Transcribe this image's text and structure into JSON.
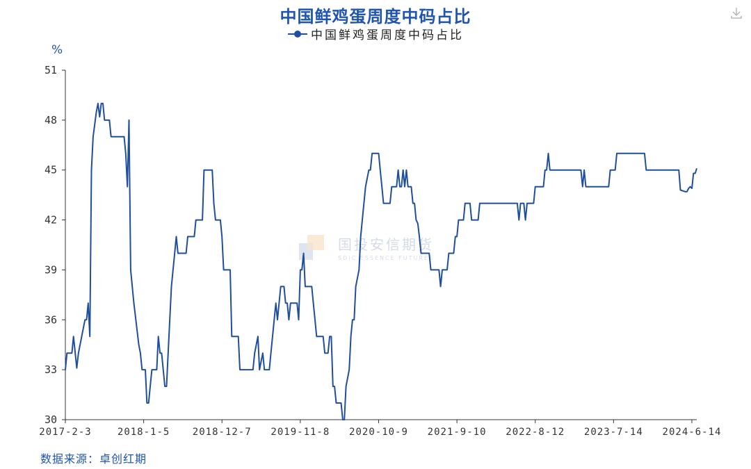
{
  "title": "中国鲜鸡蛋周度中码占比",
  "legend": "中国鲜鸡蛋周度中码占比",
  "unit": "%",
  "source": "数据来源：卓创红期",
  "watermark": {
    "cn": "国投安信期货",
    "en": "SDIC ESSENCE FUTURES"
  },
  "icons": {
    "download": "download-icon"
  },
  "colors": {
    "line": "#1f4e9c",
    "title": "#1f55b0",
    "axis": "#333333"
  },
  "chart_data": {
    "type": "line",
    "title": "中国鲜鸡蛋周度中码占比",
    "ylabel": "%",
    "ylim": [
      30,
      51
    ],
    "yticks": [
      30,
      33,
      36,
      39,
      42,
      45,
      48,
      51
    ],
    "xlim": [
      "2017-02-03",
      "2024-07-05"
    ],
    "xticks": [
      "2017-2-3",
      "2018-1-5",
      "2018-12-7",
      "2019-11-8",
      "2020-10-9",
      "2021-9-10",
      "2022-8-12",
      "2023-7-14",
      "2024-6-14"
    ],
    "grid": false,
    "legend_position": "top",
    "series": [
      {
        "name": "中国鲜鸡蛋周度中码占比",
        "points": [
          [
            "2017-02-03",
            33
          ],
          [
            "2017-02-10",
            34
          ],
          [
            "2017-03-03",
            34
          ],
          [
            "2017-03-10",
            35
          ],
          [
            "2017-03-24",
            33.1
          ],
          [
            "2017-03-31",
            34
          ],
          [
            "2017-04-14",
            35
          ],
          [
            "2017-04-28",
            36
          ],
          [
            "2017-05-05",
            36
          ],
          [
            "2017-05-12",
            37
          ],
          [
            "2017-05-19",
            35
          ],
          [
            "2017-05-26",
            45
          ],
          [
            "2017-06-02",
            47
          ],
          [
            "2017-06-16",
            48.5
          ],
          [
            "2017-06-23",
            49
          ],
          [
            "2017-06-30",
            48.2
          ],
          [
            "2017-07-07",
            49
          ],
          [
            "2017-07-14",
            49
          ],
          [
            "2017-07-21",
            48
          ],
          [
            "2017-08-11",
            48
          ],
          [
            "2017-08-18",
            47
          ],
          [
            "2017-10-13",
            47
          ],
          [
            "2017-10-20",
            46
          ],
          [
            "2017-10-27",
            44
          ],
          [
            "2017-11-03",
            48
          ],
          [
            "2017-11-10",
            39
          ],
          [
            "2017-11-24",
            37
          ],
          [
            "2017-12-15",
            34.5
          ],
          [
            "2017-12-22",
            34
          ],
          [
            "2017-12-29",
            33
          ],
          [
            "2018-01-12",
            33
          ],
          [
            "2018-01-19",
            31
          ],
          [
            "2018-01-26",
            31
          ],
          [
            "2018-02-02",
            32
          ],
          [
            "2018-02-09",
            33
          ],
          [
            "2018-03-02",
            33
          ],
          [
            "2018-03-09",
            35
          ],
          [
            "2018-03-16",
            34
          ],
          [
            "2018-03-23",
            34
          ],
          [
            "2018-04-06",
            32
          ],
          [
            "2018-04-13",
            32
          ],
          [
            "2018-04-20",
            34
          ],
          [
            "2018-05-04",
            38
          ],
          [
            "2018-05-18",
            40
          ],
          [
            "2018-05-25",
            41
          ],
          [
            "2018-06-01",
            40
          ],
          [
            "2018-07-06",
            40
          ],
          [
            "2018-07-13",
            41
          ],
          [
            "2018-08-10",
            41
          ],
          [
            "2018-08-17",
            42
          ],
          [
            "2018-09-14",
            42
          ],
          [
            "2018-09-21",
            45
          ],
          [
            "2018-10-26",
            45
          ],
          [
            "2018-11-02",
            43
          ],
          [
            "2018-11-09",
            42
          ],
          [
            "2018-11-30",
            42
          ],
          [
            "2018-12-07",
            41
          ],
          [
            "2018-12-14",
            39
          ],
          [
            "2019-01-11",
            39
          ],
          [
            "2019-01-18",
            35
          ],
          [
            "2019-02-15",
            35
          ],
          [
            "2019-02-22",
            33
          ],
          [
            "2019-04-19",
            33
          ],
          [
            "2019-04-26",
            34
          ],
          [
            "2019-05-10",
            35
          ],
          [
            "2019-05-17",
            33
          ],
          [
            "2019-05-31",
            34
          ],
          [
            "2019-06-07",
            33
          ],
          [
            "2019-06-28",
            33
          ],
          [
            "2019-07-05",
            34
          ],
          [
            "2019-07-19",
            36
          ],
          [
            "2019-07-26",
            37
          ],
          [
            "2019-08-02",
            36
          ],
          [
            "2019-08-16",
            38
          ],
          [
            "2019-08-30",
            38
          ],
          [
            "2019-09-06",
            37
          ],
          [
            "2019-09-13",
            37
          ],
          [
            "2019-09-20",
            36
          ],
          [
            "2019-09-27",
            37
          ],
          [
            "2019-10-25",
            37
          ],
          [
            "2019-11-01",
            36
          ],
          [
            "2019-11-08",
            39
          ],
          [
            "2019-11-15",
            39
          ],
          [
            "2019-11-22",
            40
          ],
          [
            "2019-11-29",
            38
          ],
          [
            "2019-12-27",
            38
          ],
          [
            "2020-01-03",
            37
          ],
          [
            "2020-01-10",
            36
          ],
          [
            "2020-01-17",
            35
          ],
          [
            "2020-02-14",
            35
          ],
          [
            "2020-02-21",
            34
          ],
          [
            "2020-03-06",
            34
          ],
          [
            "2020-03-13",
            35
          ],
          [
            "2020-03-20",
            35
          ],
          [
            "2020-03-27",
            32
          ],
          [
            "2020-04-03",
            32
          ],
          [
            "2020-04-10",
            31
          ],
          [
            "2020-05-01",
            31
          ],
          [
            "2020-05-08",
            30
          ],
          [
            "2020-05-15",
            30
          ],
          [
            "2020-05-22",
            32
          ],
          [
            "2020-06-05",
            33
          ],
          [
            "2020-06-12",
            35
          ],
          [
            "2020-06-19",
            36
          ],
          [
            "2020-06-26",
            36
          ],
          [
            "2020-07-03",
            38
          ],
          [
            "2020-07-17",
            39
          ],
          [
            "2020-07-24",
            41
          ],
          [
            "2020-07-31",
            42
          ],
          [
            "2020-08-14",
            44
          ],
          [
            "2020-08-28",
            45
          ],
          [
            "2020-09-04",
            45
          ],
          [
            "2020-09-11",
            46
          ],
          [
            "2020-09-18",
            46
          ],
          [
            "2020-10-09",
            46
          ],
          [
            "2020-10-16",
            45
          ],
          [
            "2020-10-23",
            44
          ],
          [
            "2020-10-30",
            43
          ],
          [
            "2020-11-27",
            43
          ],
          [
            "2020-12-04",
            44
          ],
          [
            "2020-12-25",
            44
          ],
          [
            "2021-01-01",
            45
          ],
          [
            "2021-01-08",
            44
          ],
          [
            "2021-01-15",
            44
          ],
          [
            "2021-01-22",
            45
          ],
          [
            "2021-01-29",
            44
          ],
          [
            "2021-02-05",
            45
          ],
          [
            "2021-02-12",
            44
          ],
          [
            "2021-02-26",
            44
          ],
          [
            "2021-03-05",
            43
          ],
          [
            "2021-03-12",
            43
          ],
          [
            "2021-03-19",
            42
          ],
          [
            "2021-03-26",
            41.8
          ],
          [
            "2021-04-02",
            41
          ],
          [
            "2021-04-09",
            40
          ],
          [
            "2021-04-16",
            40
          ],
          [
            "2021-05-14",
            40
          ],
          [
            "2021-05-21",
            39
          ],
          [
            "2021-06-18",
            39
          ],
          [
            "2021-06-25",
            39
          ],
          [
            "2021-07-02",
            38
          ],
          [
            "2021-07-09",
            39
          ],
          [
            "2021-07-30",
            39
          ],
          [
            "2021-08-06",
            40
          ],
          [
            "2021-08-27",
            40
          ],
          [
            "2021-09-03",
            41
          ],
          [
            "2021-09-10",
            41
          ],
          [
            "2021-09-17",
            42
          ],
          [
            "2021-10-08",
            42
          ],
          [
            "2021-10-15",
            43
          ],
          [
            "2021-11-05",
            43
          ],
          [
            "2021-11-12",
            42
          ],
          [
            "2021-12-10",
            42
          ],
          [
            "2021-12-17",
            43
          ],
          [
            "2022-05-27",
            43
          ],
          [
            "2022-06-03",
            42
          ],
          [
            "2022-06-10",
            43
          ],
          [
            "2022-06-24",
            43
          ],
          [
            "2022-07-01",
            42
          ],
          [
            "2022-07-08",
            43
          ],
          [
            "2022-08-05",
            43
          ],
          [
            "2022-08-12",
            44
          ],
          [
            "2022-09-16",
            44
          ],
          [
            "2022-09-23",
            45
          ],
          [
            "2022-09-30",
            45
          ],
          [
            "2022-10-07",
            46
          ],
          [
            "2022-10-14",
            45
          ],
          [
            "2023-02-24",
            45
          ],
          [
            "2023-03-03",
            44
          ],
          [
            "2023-03-10",
            45
          ],
          [
            "2023-03-17",
            44
          ],
          [
            "2023-06-23",
            44
          ],
          [
            "2023-06-30",
            45
          ],
          [
            "2023-07-21",
            45
          ],
          [
            "2023-07-28",
            46
          ],
          [
            "2023-11-24",
            46
          ],
          [
            "2023-12-01",
            45
          ],
          [
            "2024-04-19",
            45
          ],
          [
            "2024-04-26",
            43.8
          ],
          [
            "2024-05-17",
            43.7
          ],
          [
            "2024-05-24",
            43.7
          ],
          [
            "2024-05-31",
            43.9
          ],
          [
            "2024-06-07",
            44
          ],
          [
            "2024-06-14",
            43.9
          ],
          [
            "2024-06-21",
            44.8
          ],
          [
            "2024-06-28",
            44.8
          ],
          [
            "2024-07-05",
            45.1
          ]
        ]
      }
    ]
  }
}
